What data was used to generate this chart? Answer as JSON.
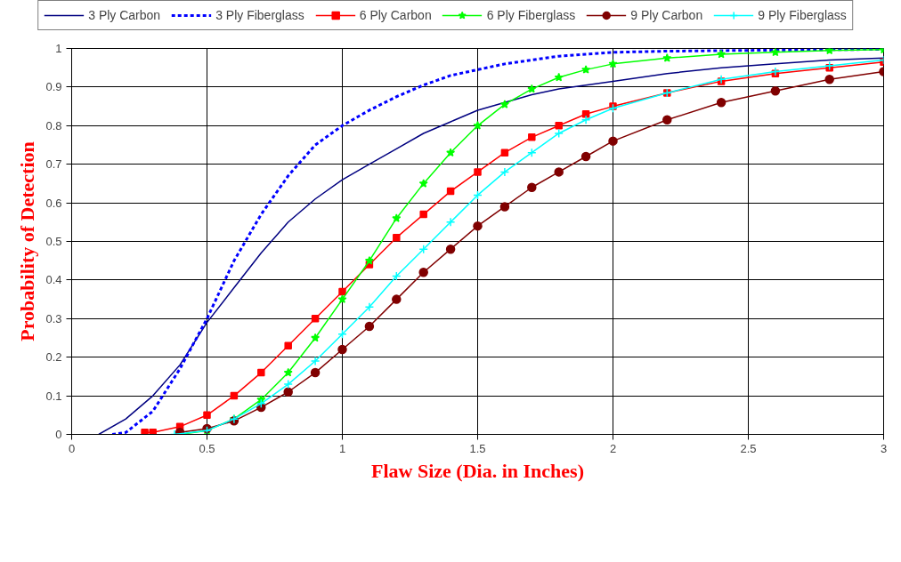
{
  "chart_data": {
    "type": "line",
    "xlabel": "Flaw Size (Dia. in Inches)",
    "ylabel": "Probability of Detection",
    "xlim": [
      0,
      3
    ],
    "ylim": [
      0,
      1
    ],
    "xticks": [
      0,
      0.5,
      1,
      1.5,
      2,
      2.5,
      3
    ],
    "yticks": [
      0,
      0.1,
      0.2,
      0.3,
      0.4,
      0.5,
      0.6,
      0.7,
      0.8,
      0.9,
      1
    ],
    "grid": true,
    "legend": "top",
    "series": [
      {
        "name": "3 Ply Carbon",
        "color": "#000080",
        "marker": "none",
        "line_style": "solid",
        "x": [
          0.1,
          0.2,
          0.3,
          0.4,
          0.5,
          0.6,
          0.7,
          0.8,
          0.9,
          1.0,
          1.1,
          1.2,
          1.3,
          1.4,
          1.5,
          1.6,
          1.7,
          1.8,
          1.9,
          2.0,
          2.2,
          2.4,
          2.6,
          2.8,
          3.0
        ],
        "values": [
          0,
          0.04,
          0.1,
          0.18,
          0.29,
          0.38,
          0.47,
          0.55,
          0.61,
          0.66,
          0.7,
          0.74,
          0.78,
          0.81,
          0.84,
          0.86,
          0.88,
          0.895,
          0.905,
          0.915,
          0.935,
          0.95,
          0.96,
          0.97,
          0.975
        ]
      },
      {
        "name": "3 Ply Fiberglass",
        "color": "#0000ff",
        "marker": "none",
        "line_style": "dotted",
        "x": [
          0.15,
          0.2,
          0.3,
          0.4,
          0.5,
          0.6,
          0.7,
          0.8,
          0.9,
          1.0,
          1.1,
          1.2,
          1.3,
          1.4,
          1.5,
          1.6,
          1.7,
          1.8,
          1.9,
          2.0,
          2.2,
          2.5,
          3.0
        ],
        "values": [
          0,
          0.005,
          0.06,
          0.17,
          0.3,
          0.45,
          0.57,
          0.67,
          0.75,
          0.8,
          0.84,
          0.875,
          0.905,
          0.93,
          0.945,
          0.96,
          0.97,
          0.98,
          0.985,
          0.99,
          0.993,
          0.995,
          0.998
        ]
      },
      {
        "name": "6 Ply Carbon",
        "color": "#ff0000",
        "marker": "square",
        "line_style": "solid",
        "x": [
          0.27,
          0.3,
          0.4,
          0.5,
          0.6,
          0.7,
          0.8,
          0.9,
          1.0,
          1.1,
          1.2,
          1.3,
          1.4,
          1.5,
          1.6,
          1.7,
          1.8,
          1.9,
          2.0,
          2.2,
          2.4,
          2.6,
          2.8,
          3.0
        ],
        "values": [
          0.005,
          0.005,
          0.02,
          0.05,
          0.1,
          0.16,
          0.23,
          0.3,
          0.37,
          0.44,
          0.51,
          0.57,
          0.63,
          0.68,
          0.73,
          0.77,
          0.8,
          0.83,
          0.85,
          0.885,
          0.915,
          0.935,
          0.95,
          0.965
        ]
      },
      {
        "name": "6 Ply Fiberglass",
        "color": "#00ff00",
        "marker": "star",
        "line_style": "solid",
        "x": [
          0.4,
          0.5,
          0.6,
          0.7,
          0.8,
          0.9,
          1.0,
          1.1,
          1.2,
          1.3,
          1.4,
          1.5,
          1.6,
          1.7,
          1.8,
          1.9,
          2.0,
          2.2,
          2.4,
          2.6,
          2.8,
          3.0
        ],
        "values": [
          0,
          0.01,
          0.04,
          0.09,
          0.16,
          0.25,
          0.35,
          0.45,
          0.56,
          0.65,
          0.73,
          0.8,
          0.855,
          0.895,
          0.925,
          0.945,
          0.96,
          0.975,
          0.985,
          0.99,
          0.995,
          0.997
        ]
      },
      {
        "name": "9 Ply Carbon",
        "color": "#800000",
        "marker": "circle",
        "line_style": "solid",
        "x": [
          0.4,
          0.5,
          0.6,
          0.7,
          0.8,
          0.9,
          1.0,
          1.1,
          1.2,
          1.3,
          1.4,
          1.5,
          1.6,
          1.7,
          1.8,
          1.9,
          2.0,
          2.2,
          2.4,
          2.6,
          2.8,
          3.0
        ],
        "values": [
          0.005,
          0.015,
          0.035,
          0.07,
          0.11,
          0.16,
          0.22,
          0.28,
          0.35,
          0.42,
          0.48,
          0.54,
          0.59,
          0.64,
          0.68,
          0.72,
          0.76,
          0.815,
          0.86,
          0.89,
          0.92,
          0.94
        ]
      },
      {
        "name": "9 Ply Fiberglass",
        "color": "#00ffff",
        "marker": "cross",
        "line_style": "solid",
        "x": [
          0.38,
          0.5,
          0.6,
          0.7,
          0.8,
          0.9,
          1.0,
          1.1,
          1.2,
          1.3,
          1.4,
          1.5,
          1.6,
          1.7,
          1.8,
          1.9,
          2.0,
          2.2,
          2.4,
          2.6,
          2.8,
          3.0
        ],
        "values": [
          0,
          0.01,
          0.04,
          0.08,
          0.13,
          0.19,
          0.26,
          0.33,
          0.41,
          0.48,
          0.55,
          0.62,
          0.68,
          0.73,
          0.78,
          0.815,
          0.845,
          0.885,
          0.92,
          0.94,
          0.955,
          0.97
        ]
      }
    ]
  }
}
